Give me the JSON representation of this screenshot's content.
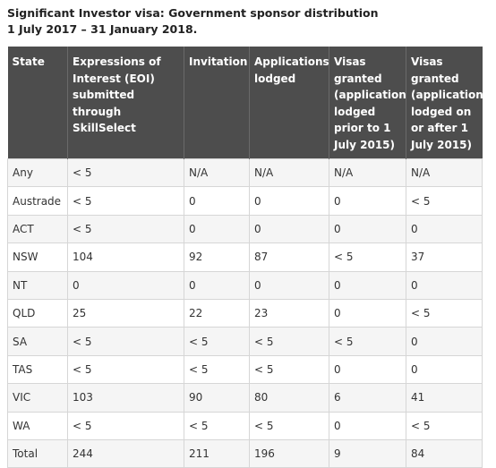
{
  "title": {
    "line1": "Significant Investor visa: Government sponsor distribution",
    "line2": "1 July 2017 – 31 January 2018."
  },
  "table": {
    "headers": [
      "State",
      "Expressions of Interest (EOI) submitted through SkillSelect",
      "Invitation",
      "Applications lodged",
      "Visas granted (application lodged prior to 1 July 2015)",
      "Visas granted (application lodged on or after 1 July 2015)"
    ],
    "rows": [
      [
        "Any",
        "< 5",
        "N/A",
        "N/A",
        "N/A",
        "N/A"
      ],
      [
        "Austrade",
        "< 5",
        "0",
        "0",
        "0",
        "< 5"
      ],
      [
        "ACT",
        "< 5",
        "0",
        "0",
        "0",
        "0"
      ],
      [
        "NSW",
        "104",
        "92",
        "87",
        "< 5",
        "37"
      ],
      [
        "NT",
        "0",
        "0",
        "0",
        "0",
        "0"
      ],
      [
        "QLD",
        "25",
        "22",
        "23",
        "0",
        "< 5"
      ],
      [
        "SA",
        "< 5",
        "< 5",
        "< 5",
        "< 5",
        "0"
      ],
      [
        "TAS",
        "< 5",
        "< 5",
        "< 5",
        "0",
        "0"
      ],
      [
        "VIC",
        "103",
        "90",
        "80",
        "6",
        "41"
      ],
      [
        "WA",
        "< 5",
        "< 5",
        "< 5",
        "0",
        "< 5"
      ],
      [
        "Total",
        "244",
        "211",
        "196",
        "9",
        "84"
      ]
    ]
  }
}
